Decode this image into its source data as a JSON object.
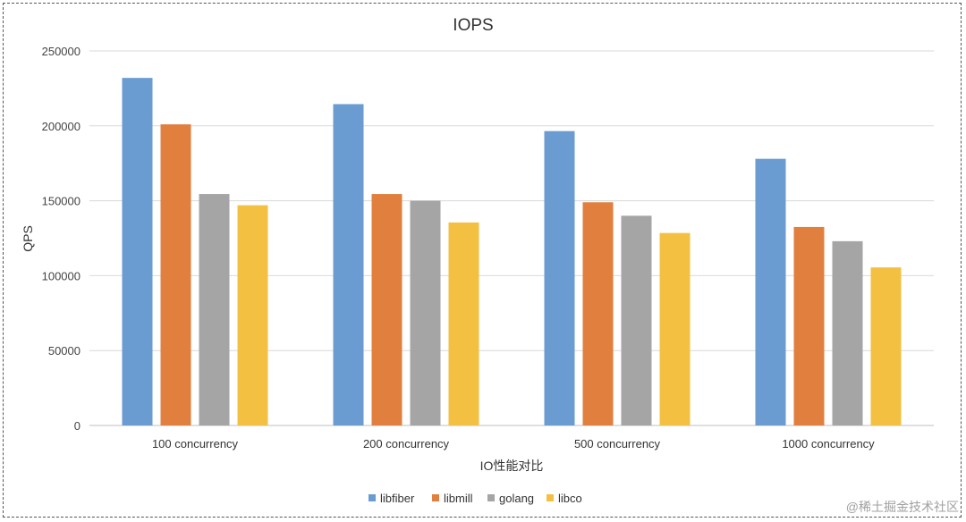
{
  "chart_data": {
    "type": "bar",
    "title": "IOPS",
    "xlabel": "IO性能对比",
    "ylabel": "QPS",
    "categories": [
      "100 concurrency",
      "200 concurrency",
      "500 concurrency",
      "1000 concurrency"
    ],
    "series": [
      {
        "name": "libfiber",
        "color": "#6a9bd1",
        "values": [
          232000,
          214500,
          196500,
          178000
        ]
      },
      {
        "name": "libmill",
        "color": "#e07f3e",
        "values": [
          201000,
          154500,
          149000,
          132500
        ]
      },
      {
        "name": "golang",
        "color": "#a5a5a5",
        "values": [
          154500,
          150000,
          140000,
          123000
        ]
      },
      {
        "name": "libco",
        "color": "#f4c042",
        "values": [
          147000,
          135500,
          128500,
          105500
        ]
      }
    ],
    "ylim": [
      0,
      250000
    ],
    "yticks": [
      "0",
      "50000",
      "100000",
      "150000",
      "200000",
      "250000"
    ],
    "grid": true,
    "legend_position": "bottom"
  },
  "watermark": "@稀土掘金技术社区"
}
